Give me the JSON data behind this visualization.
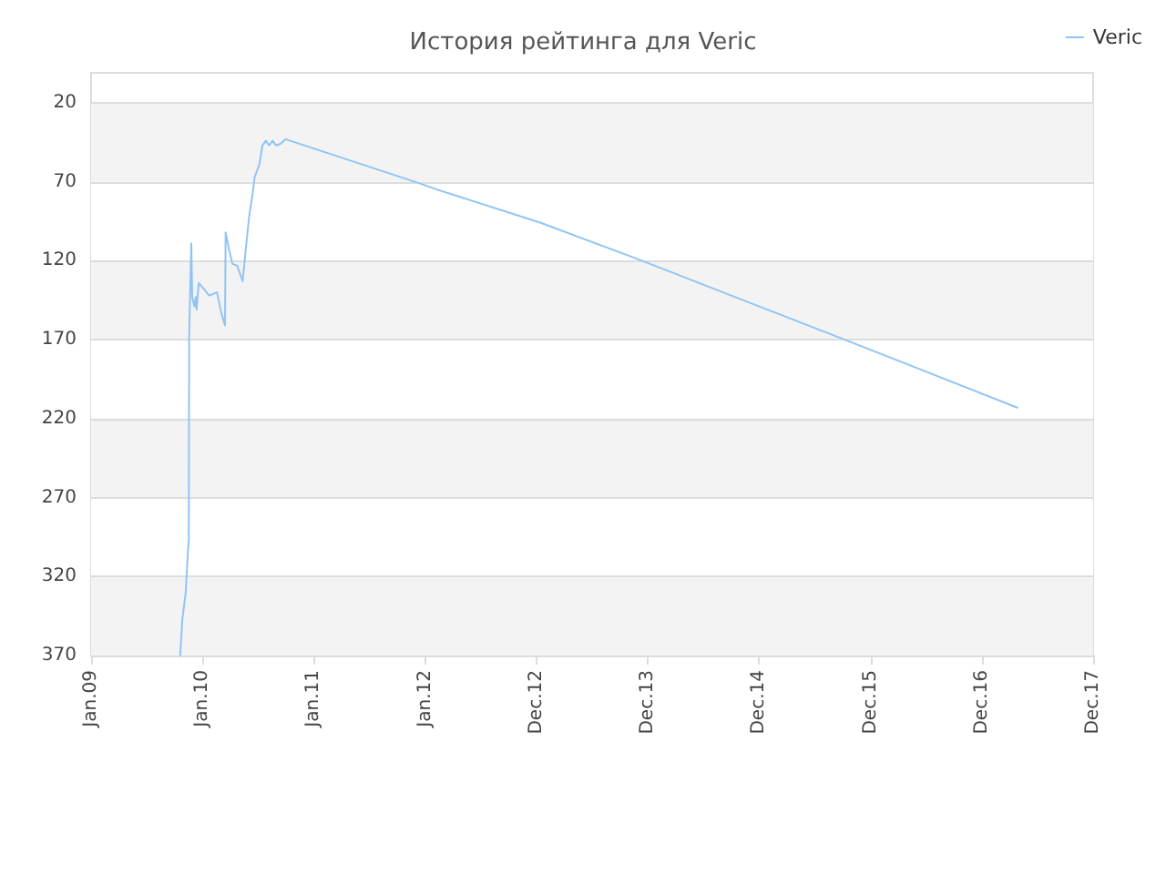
{
  "chart_data": {
    "type": "line",
    "title": "История рейтинга для Veric",
    "xlim": [
      "2009-01-19",
      "2017-12-03"
    ],
    "xticks": [
      {
        "value": "2009-01-19",
        "label": "Jan.09"
      },
      {
        "value": "2010-01-14",
        "label": "Jan.10"
      },
      {
        "value": "2011-01-09",
        "label": "Jan.11"
      },
      {
        "value": "2012-01-04",
        "label": "Jan.12"
      },
      {
        "value": "2012-12-29",
        "label": "Dec.12"
      },
      {
        "value": "2013-12-24",
        "label": "Dec.13"
      },
      {
        "value": "2014-12-19",
        "label": "Dec.14"
      },
      {
        "value": "2015-12-14",
        "label": "Dec.15"
      },
      {
        "value": "2016-12-08",
        "label": "Dec.16"
      },
      {
        "value": "2017-12-03",
        "label": "Dec.17"
      }
    ],
    "ylim": [
      370,
      1
    ],
    "yticks": [
      20,
      70,
      120,
      170,
      220,
      270,
      320,
      370
    ],
    "grid": "y",
    "legend": "top right",
    "marker": "none",
    "line_style": "solid",
    "series": [
      {
        "name": "Veric",
        "color": "#90c4f4",
        "x": [
          "2009-11-03",
          "2009-11-10",
          "2009-11-21",
          "2009-11-28",
          "2009-12-01",
          "2009-12-02",
          "2009-12-09",
          "2009-12-12",
          "2009-12-19",
          "2009-12-23",
          "2009-12-26",
          "2010-01-02",
          "2010-02-05",
          "2010-03-02",
          "2010-03-16",
          "2010-03-28",
          "2010-03-30",
          "2010-04-10",
          "2010-04-21",
          "2010-05-06",
          "2010-05-24",
          "2010-06-03",
          "2010-06-14",
          "2010-06-25",
          "2010-07-02",
          "2010-07-17",
          "2010-07-27",
          "2010-08-07",
          "2010-08-18",
          "2010-08-29",
          "2010-09-09",
          "2010-09-23",
          "2010-10-11",
          "2010-10-25",
          "2011-12-17",
          "2012-02-13",
          "2013-01-12",
          "2013-11-22",
          "2015-09-22",
          "2017-04-02"
        ],
        "values": [
          370,
          347,
          330,
          304,
          297,
          168,
          109,
          143,
          149,
          143,
          151,
          134,
          142,
          140,
          153,
          161,
          102,
          113,
          122,
          123,
          133,
          113,
          92,
          78,
          67,
          59,
          47,
          44,
          47,
          44,
          47,
          46,
          43,
          44,
          71,
          75,
          96,
          119,
          170,
          213
        ]
      }
    ]
  }
}
